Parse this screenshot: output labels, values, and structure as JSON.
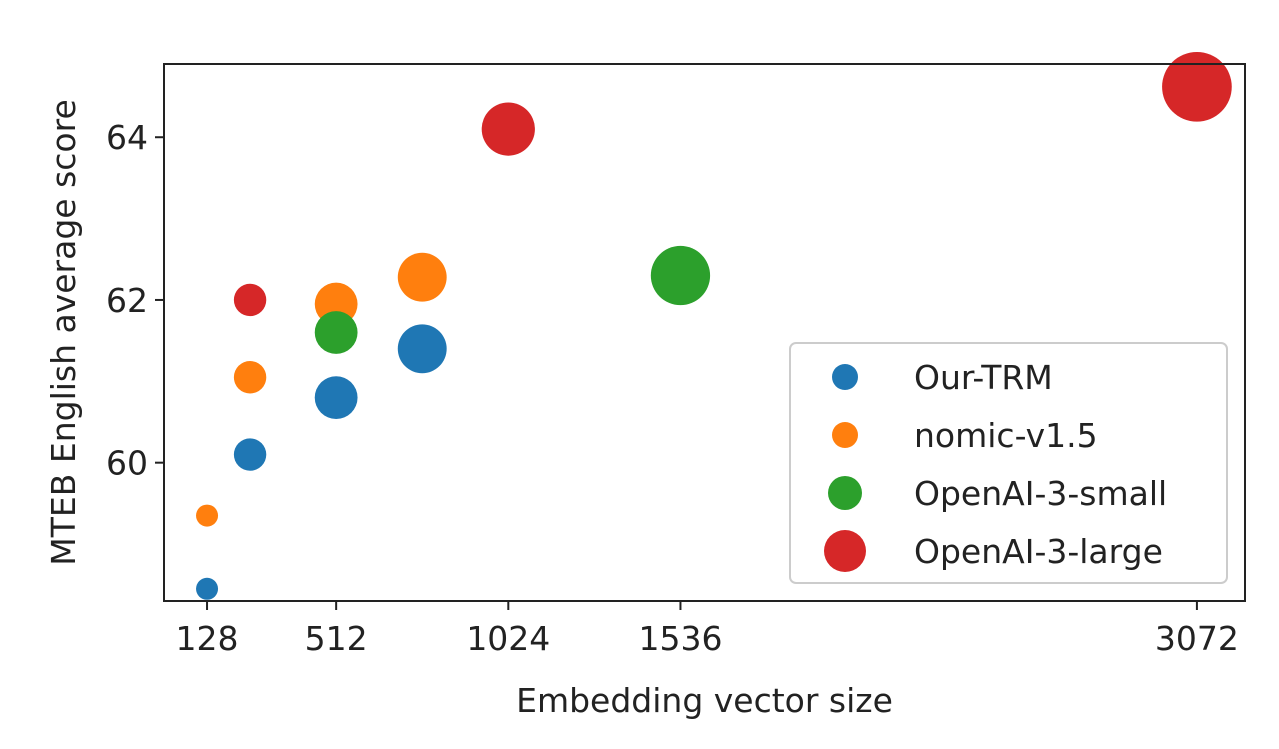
{
  "chart_data": {
    "type": "scatter",
    "title": "",
    "xlabel": "Embedding vector size",
    "ylabel": "MTEB English average score",
    "xlim": [
      0,
      3215
    ],
    "ylim": [
      58.3,
      64.9
    ],
    "xticks": [
      128,
      512,
      1024,
      1536,
      3072
    ],
    "yticks": [
      60,
      62,
      64
    ],
    "grid": false,
    "legend_position": "lower-right",
    "series": [
      {
        "name": "Our-TRM",
        "color": "#1f77b4",
        "points": [
          {
            "x": 128,
            "y": 58.45
          },
          {
            "x": 256,
            "y": 60.1
          },
          {
            "x": 512,
            "y": 60.8
          },
          {
            "x": 768,
            "y": 61.4
          }
        ]
      },
      {
        "name": "nomic-v1.5",
        "color": "#ff7f0e",
        "points": [
          {
            "x": 128,
            "y": 59.35
          },
          {
            "x": 256,
            "y": 61.05
          },
          {
            "x": 512,
            "y": 61.95
          },
          {
            "x": 768,
            "y": 62.28
          }
        ]
      },
      {
        "name": "OpenAI-3-small",
        "color": "#2ca02c",
        "points": [
          {
            "x": 512,
            "y": 61.6
          },
          {
            "x": 1536,
            "y": 62.3
          }
        ]
      },
      {
        "name": "OpenAI-3-large",
        "color": "#d62728",
        "points": [
          {
            "x": 256,
            "y": 62.0
          },
          {
            "x": 1024,
            "y": 64.1
          },
          {
            "x": 3072,
            "y": 64.62
          }
        ]
      }
    ]
  }
}
